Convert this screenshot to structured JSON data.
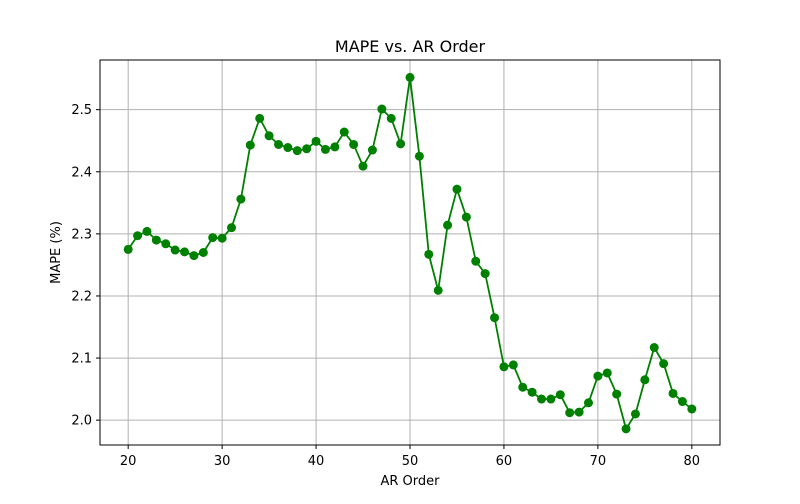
{
  "chart_data": {
    "type": "line",
    "title": "MAPE vs. AR Order",
    "xlabel": "AR Order",
    "ylabel": "MAPE (%)",
    "xlim": [
      17,
      83
    ],
    "ylim": [
      1.96,
      2.58
    ],
    "xticks": [
      20,
      30,
      40,
      50,
      60,
      70,
      80
    ],
    "yticks": [
      2.0,
      2.1,
      2.2,
      2.3,
      2.4,
      2.5
    ],
    "xtick_labels": [
      "20",
      "30",
      "40",
      "50",
      "60",
      "70",
      "80"
    ],
    "ytick_labels": [
      "2.0",
      "2.1",
      "2.2",
      "2.3",
      "2.4",
      "2.5"
    ],
    "grid": true,
    "legend": false,
    "color": "#008000",
    "marker": "circle",
    "x": [
      20,
      21,
      22,
      23,
      24,
      25,
      26,
      27,
      28,
      29,
      30,
      31,
      32,
      33,
      34,
      35,
      36,
      37,
      38,
      39,
      40,
      41,
      42,
      43,
      44,
      45,
      46,
      47,
      48,
      49,
      50,
      51,
      52,
      53,
      54,
      55,
      56,
      57,
      58,
      59,
      60,
      61,
      62,
      63,
      64,
      65,
      66,
      67,
      68,
      69,
      70,
      71,
      72,
      73,
      74,
      75,
      76,
      77,
      78,
      79,
      80
    ],
    "y": [
      2.275,
      2.297,
      2.304,
      2.29,
      2.284,
      2.274,
      2.271,
      2.265,
      2.27,
      2.294,
      2.293,
      2.31,
      2.356,
      2.443,
      2.486,
      2.458,
      2.444,
      2.439,
      2.434,
      2.437,
      2.449,
      2.436,
      2.44,
      2.464,
      2.444,
      2.409,
      2.435,
      2.501,
      2.486,
      2.445,
      2.552,
      2.425,
      2.267,
      2.209,
      2.314,
      2.372,
      2.327,
      2.256,
      2.236,
      2.165,
      2.086,
      2.089,
      2.053,
      2.045,
      2.034,
      2.034,
      2.041,
      2.012,
      2.013,
      2.028,
      2.071,
      2.076,
      2.042,
      1.986,
      2.01,
      2.065,
      2.117,
      2.091,
      2.043,
      2.03,
      2.018
    ]
  }
}
